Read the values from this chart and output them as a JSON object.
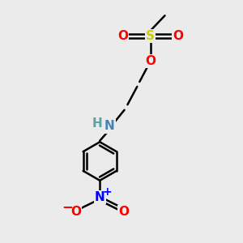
{
  "bg_color": "#ebebeb",
  "bond_color": "#000000",
  "bond_width": 1.8,
  "atom_colors": {
    "O": "#ff0000",
    "S": "#cccc00",
    "N_amine": "#4682b4",
    "H": "#5fa0a0",
    "N_nitro": "#0000ff",
    "O_nitro": "#ff0000",
    "C": "#000000"
  },
  "font_size_atom": 11,
  "font_size_small": 8
}
